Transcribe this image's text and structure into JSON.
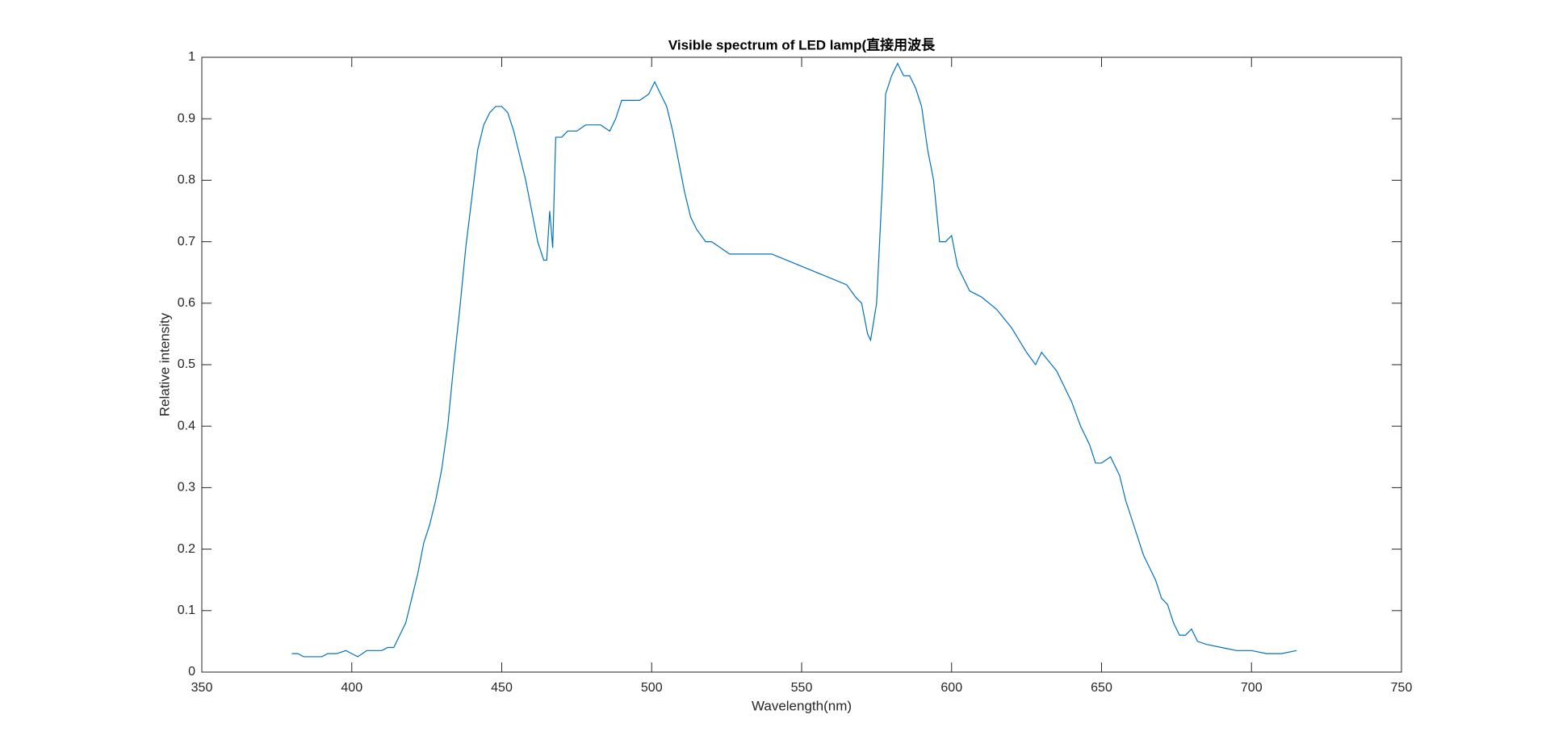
{
  "chart_data": {
    "type": "line",
    "title": "Visible spectrum of LED lamp(直接用波長",
    "x_label": "Wavelength(nm)",
    "y_label": "Relative intensity",
    "color": "#0072bd",
    "x": [
      380,
      382,
      384,
      390,
      392,
      395,
      398,
      400,
      402,
      405,
      408,
      410,
      412,
      414,
      416,
      418,
      420,
      422,
      424,
      426,
      428,
      430,
      432,
      434,
      436,
      438,
      440,
      442,
      444,
      446,
      448,
      450,
      452,
      454,
      456,
      458,
      460,
      462,
      464,
      465,
      466,
      467,
      468,
      470,
      472,
      475,
      478,
      480,
      483,
      486,
      488,
      490,
      493,
      496,
      499,
      501,
      503,
      505,
      507,
      509,
      511,
      513,
      515,
      518,
      520,
      523,
      526,
      530,
      535,
      540,
      545,
      550,
      555,
      560,
      565,
      568,
      570,
      572,
      573,
      575,
      577,
      578,
      580,
      582,
      584,
      586,
      588,
      590,
      592,
      594,
      596,
      598,
      600,
      602,
      604,
      606,
      610,
      615,
      620,
      625,
      628,
      630,
      635,
      640,
      643,
      646,
      648,
      650,
      653,
      656,
      658,
      660,
      662,
      664,
      666,
      668,
      670,
      672,
      674,
      676,
      678,
      680,
      682,
      685,
      690,
      695,
      700,
      705,
      710,
      715
    ],
    "values": [
      0.03,
      0.03,
      0.025,
      0.025,
      0.03,
      0.03,
      0.035,
      0.03,
      0.025,
      0.035,
      0.035,
      0.035,
      0.04,
      0.04,
      0.06,
      0.08,
      0.12,
      0.16,
      0.21,
      0.24,
      0.28,
      0.33,
      0.4,
      0.5,
      0.59,
      0.69,
      0.77,
      0.85,
      0.89,
      0.91,
      0.92,
      0.92,
      0.91,
      0.88,
      0.84,
      0.8,
      0.75,
      0.7,
      0.67,
      0.67,
      0.75,
      0.69,
      0.87,
      0.87,
      0.88,
      0.88,
      0.89,
      0.89,
      0.89,
      0.88,
      0.9,
      0.93,
      0.93,
      0.93,
      0.94,
      0.96,
      0.94,
      0.92,
      0.88,
      0.83,
      0.78,
      0.74,
      0.72,
      0.7,
      0.7,
      0.69,
      0.68,
      0.68,
      0.68,
      0.68,
      0.67,
      0.66,
      0.65,
      0.64,
      0.63,
      0.61,
      0.6,
      0.55,
      0.54,
      0.6,
      0.8,
      0.94,
      0.97,
      0.99,
      0.97,
      0.97,
      0.95,
      0.92,
      0.85,
      0.8,
      0.7,
      0.7,
      0.71,
      0.66,
      0.64,
      0.62,
      0.61,
      0.59,
      0.56,
      0.52,
      0.5,
      0.52,
      0.49,
      0.44,
      0.4,
      0.37,
      0.34,
      0.34,
      0.35,
      0.32,
      0.28,
      0.25,
      0.22,
      0.19,
      0.17,
      0.15,
      0.12,
      0.11,
      0.08,
      0.06,
      0.06,
      0.07,
      0.05,
      0.045,
      0.04,
      0.035,
      0.035,
      0.03,
      0.03,
      0.035
    ],
    "xlim": [
      350,
      750
    ],
    "xticks": [
      350,
      400,
      450,
      500,
      550,
      600,
      650,
      700,
      750
    ],
    "ylim": [
      0,
      1
    ],
    "yticks": [
      0,
      0.1,
      0.2,
      0.3,
      0.4,
      0.5,
      0.6,
      0.7,
      0.8,
      0.9,
      1
    ]
  }
}
